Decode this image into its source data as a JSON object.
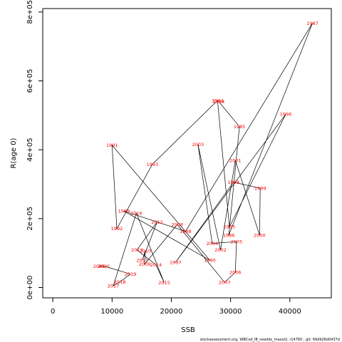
{
  "chart_data": {
    "type": "scatter",
    "title": "",
    "xlabel": "SSB",
    "ylabel": "R(age 0)",
    "xlim": [
      -1700,
      47000
    ],
    "ylim": [
      -30000,
      810000
    ],
    "x_ticks": [
      {
        "value": 0,
        "label": "0"
      },
      {
        "value": 10000,
        "label": "10000"
      },
      {
        "value": 20000,
        "label": "20000"
      },
      {
        "value": 30000,
        "label": "30000"
      },
      {
        "value": 40000,
        "label": "40000"
      }
    ],
    "y_ticks": [
      {
        "value": 0,
        "label": "0e+00"
      },
      {
        "value": 200000,
        "label": "2e+05"
      },
      {
        "value": 400000,
        "label": "4e+05"
      },
      {
        "value": 600000,
        "label": "6e+05"
      },
      {
        "value": 800000,
        "label": "8e+05"
      }
    ],
    "grid": false,
    "legend": "none",
    "label_color": "#ff0000",
    "line_color": "#000000",
    "points": [
      {
        "year": "1984",
        "ssb": 28000,
        "rec": 540000
      },
      {
        "year": "1985",
        "ssb": 31500,
        "rec": 467000
      },
      {
        "year": "1986",
        "ssb": 29700,
        "rec": 152000
      },
      {
        "year": "1987",
        "ssb": 43800,
        "rec": 767000
      },
      {
        "year": "1988",
        "ssb": 22400,
        "rec": 163000
      },
      {
        "year": "1989",
        "ssb": 12000,
        "rec": 222000
      },
      {
        "year": "1990",
        "ssb": 26500,
        "rec": 79000
      },
      {
        "year": "1991",
        "ssb": 10000,
        "rec": 413000
      },
      {
        "year": "1992",
        "ssb": 10800,
        "rec": 171000
      },
      {
        "year": "1993",
        "ssb": 16800,
        "rec": 358000
      },
      {
        "year": "1994",
        "ssb": 27800,
        "rec": 543000
      },
      {
        "year": "1995",
        "ssb": 29800,
        "rec": 176000
      },
      {
        "year": "1996",
        "ssb": 39300,
        "rec": 503000
      },
      {
        "year": "1997",
        "ssb": 20700,
        "rec": 73000
      },
      {
        "year": "1998",
        "ssb": 30500,
        "rec": 306000
      },
      {
        "year": "1999",
        "ssb": 35000,
        "rec": 288000
      },
      {
        "year": "2000",
        "ssb": 34900,
        "rec": 152000
      },
      {
        "year": "2001",
        "ssb": 30800,
        "rec": 369000
      },
      {
        "year": "2002",
        "ssb": 28300,
        "rec": 109000
      },
      {
        "year": "2003",
        "ssb": 24500,
        "rec": 415000
      },
      {
        "year": "2004",
        "ssb": 26900,
        "rec": 128000
      },
      {
        "year": "2005",
        "ssb": 31000,
        "rec": 133000
      },
      {
        "year": "2006",
        "ssb": 30800,
        "rec": 44000
      },
      {
        "year": "2007",
        "ssb": 29000,
        "rec": 15000
      },
      {
        "year": "2008",
        "ssb": 21000,
        "rec": 183000
      },
      {
        "year": "2009",
        "ssb": 15500,
        "rec": 68000
      },
      {
        "year": "2010",
        "ssb": 15600,
        "rec": 106000
      },
      {
        "year": "2011",
        "ssb": 15100,
        "rec": 79000
      },
      {
        "year": "2012",
        "ssb": 17600,
        "rec": 190000
      },
      {
        "year": "2013",
        "ssb": 14200,
        "rec": 109000
      },
      {
        "year": "2014",
        "ssb": 17400,
        "rec": 66000
      },
      {
        "year": "2015",
        "ssb": 18800,
        "rec": 14000
      },
      {
        "year": "2016",
        "ssb": 14100,
        "rec": 216000
      },
      {
        "year": "2017",
        "ssb": 10200,
        "rec": 5000
      },
      {
        "year": "2018",
        "ssb": 11300,
        "rec": 16000
      },
      {
        "year": "2019",
        "ssb": 13100,
        "rec": 39000
      },
      {
        "year": "2020",
        "ssb": 8600,
        "rec": 62000
      },
      {
        "year": "2021",
        "ssb": 7800,
        "rec": 62000
      }
    ],
    "footer": "stockassessment.org, WBCod_lB_newldx_maxal2, r14760 , git: 69d926d0437d"
  }
}
